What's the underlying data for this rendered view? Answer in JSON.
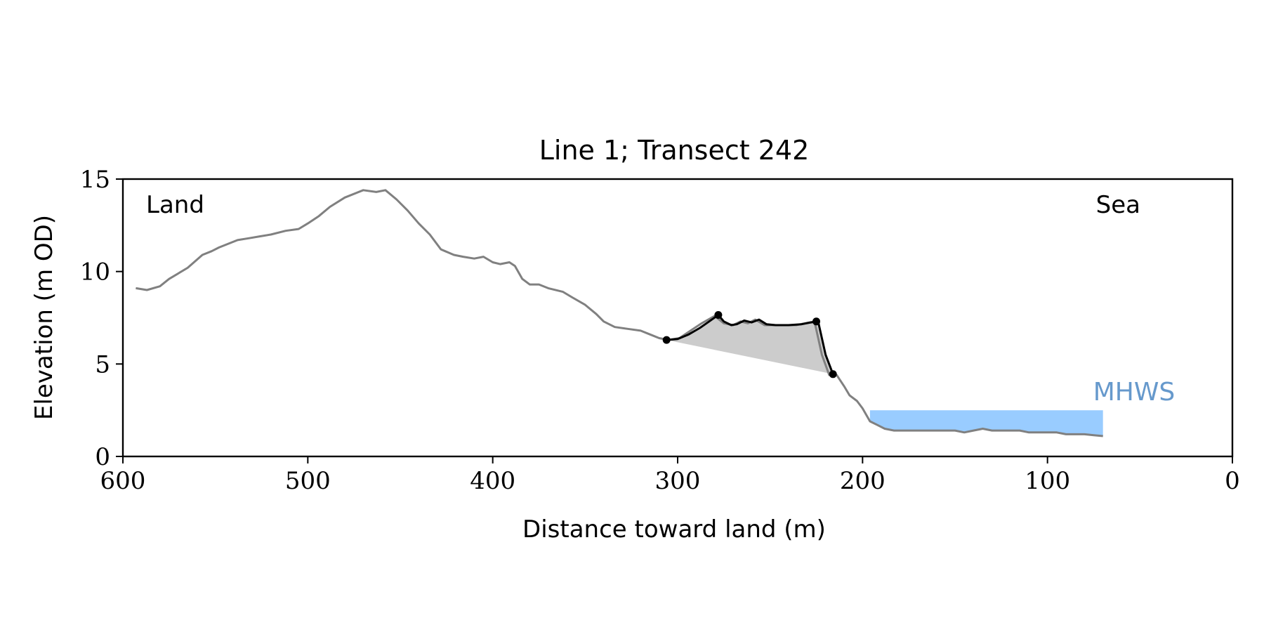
{
  "chart_data": {
    "type": "line",
    "title": "Line 1; Transect 242",
    "xlabel": "Distance toward land (m)",
    "ylabel": "Elevation (m OD)",
    "xlim": [
      600,
      0
    ],
    "ylim": [
      0,
      15
    ],
    "x_ticks": [
      600,
      500,
      400,
      300,
      200,
      100,
      0
    ],
    "y_ticks": [
      0,
      5,
      10,
      15
    ],
    "grid": false,
    "annotations": {
      "left": "Land",
      "right": "Sea",
      "mhws": "MHWS"
    },
    "colors": {
      "profile": "#808080",
      "dune": "#000000",
      "fill": "#cccccc",
      "mhws_fill": "#99ccff",
      "mhws_text": "#6699cc",
      "axes": "#000000"
    },
    "profile": {
      "x": [
        593,
        587,
        580,
        575,
        565,
        557,
        552,
        548,
        538,
        532,
        526,
        520,
        512,
        505,
        500,
        494,
        488,
        480,
        470,
        463,
        458,
        452,
        446,
        440,
        434,
        428,
        421,
        416,
        410,
        405,
        400,
        396,
        391,
        388,
        384,
        380,
        375,
        370,
        362,
        357,
        350,
        344,
        340,
        334,
        327,
        320,
        315,
        310,
        305,
        299,
        293,
        287,
        280,
        275,
        270,
        266,
        262,
        258,
        253,
        247,
        241,
        236,
        231,
        226,
        222,
        218,
        214,
        210,
        207,
        203,
        200,
        196,
        192,
        188,
        183,
        178,
        170,
        160,
        150,
        145,
        140,
        135,
        130,
        125,
        120,
        115,
        110,
        105,
        100,
        95,
        90,
        85,
        80,
        75,
        70
      ],
      "y": [
        9.1,
        9.0,
        9.2,
        9.6,
        10.2,
        10.9,
        11.1,
        11.3,
        11.7,
        11.8,
        11.9,
        12.0,
        12.2,
        12.3,
        12.6,
        13.0,
        13.5,
        14.0,
        14.4,
        14.3,
        14.4,
        13.9,
        13.3,
        12.6,
        12.0,
        11.2,
        10.9,
        10.8,
        10.7,
        10.8,
        10.5,
        10.4,
        10.5,
        10.3,
        9.6,
        9.3,
        9.3,
        9.1,
        8.9,
        8.6,
        8.2,
        7.7,
        7.3,
        7.0,
        6.9,
        6.8,
        6.6,
        6.4,
        6.3,
        6.4,
        6.8,
        7.2,
        7.6,
        7.2,
        7.1,
        7.3,
        7.2,
        7.4,
        7.1,
        7.1,
        7.1,
        7.1,
        7.2,
        7.3,
        5.5,
        4.4,
        4.4,
        3.8,
        3.3,
        3.0,
        2.6,
        1.9,
        1.7,
        1.5,
        1.4,
        1.4,
        1.4,
        1.4,
        1.4,
        1.3,
        1.4,
        1.5,
        1.4,
        1.4,
        1.4,
        1.4,
        1.3,
        1.3,
        1.3,
        1.3,
        1.2,
        1.2,
        1.2,
        1.15,
        1.1
      ]
    },
    "dune_crest": {
      "x": [
        306,
        300,
        294,
        288,
        283,
        278,
        275,
        271,
        268,
        264,
        260,
        256,
        252,
        247,
        240,
        233,
        228,
        224,
        220,
        216
      ],
      "y": [
        6.3,
        6.35,
        6.6,
        6.95,
        7.3,
        7.65,
        7.3,
        7.1,
        7.15,
        7.35,
        7.25,
        7.4,
        7.15,
        7.1,
        7.1,
        7.15,
        7.25,
        7.3,
        5.5,
        4.45
      ]
    },
    "dune_points": {
      "x": [
        306,
        278,
        225,
        216
      ],
      "y": [
        6.3,
        7.65,
        7.3,
        4.45
      ]
    },
    "fill_region": {
      "top_x": [
        306,
        300,
        294,
        288,
        283,
        278,
        275,
        271,
        268,
        264,
        260,
        256,
        252,
        247,
        240,
        233,
        228,
        224,
        220,
        216
      ],
      "top_y": [
        6.3,
        6.35,
        6.6,
        6.95,
        7.3,
        7.65,
        7.3,
        7.1,
        7.15,
        7.35,
        7.25,
        7.4,
        7.15,
        7.1,
        7.1,
        7.15,
        7.25,
        7.3,
        5.5,
        4.45
      ],
      "base_x": [
        216,
        306
      ],
      "base_y": [
        4.45,
        6.3
      ]
    },
    "mhws": {
      "x_range": [
        196,
        70
      ],
      "level": 2.5
    }
  }
}
